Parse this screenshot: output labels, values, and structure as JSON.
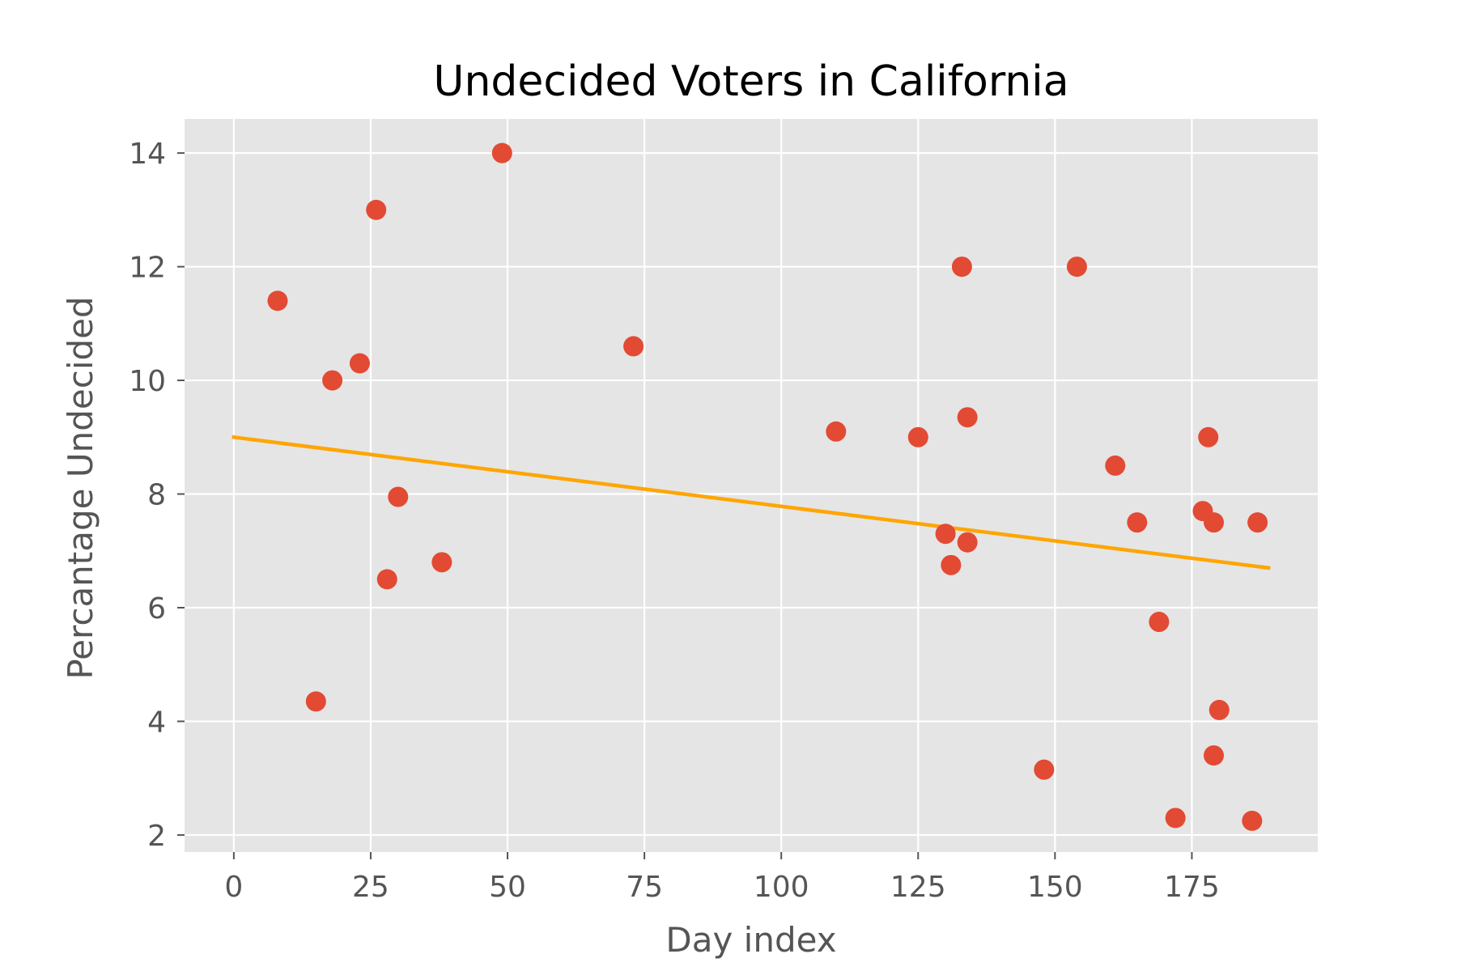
{
  "chart_data": {
    "type": "scatter",
    "title": "Undecided Voters in California",
    "xlabel": "Day index",
    "ylabel": "Percantage Undecided",
    "xlim": [
      -9,
      198
    ],
    "ylim": [
      1.7,
      14.6
    ],
    "xticks": [
      0,
      25,
      50,
      75,
      100,
      125,
      150,
      175
    ],
    "yticks": [
      2,
      4,
      6,
      8,
      10,
      12,
      14
    ],
    "grid": true,
    "background": "#e5e5e5",
    "colors": {
      "points": "#e24a33",
      "trend": "#ffa500",
      "grid": "#ffffff"
    },
    "series": [
      {
        "kind": "points",
        "x": [
          8,
          15,
          18,
          23,
          26,
          28,
          30,
          38,
          49,
          73,
          110,
          125,
          130,
          131,
          133,
          134,
          134,
          148,
          154,
          161,
          165,
          169,
          172,
          177,
          178,
          179,
          179,
          180,
          186,
          187
        ],
        "y": [
          11.4,
          4.35,
          10.0,
          10.3,
          13.0,
          6.5,
          7.95,
          6.8,
          14.0,
          10.6,
          9.1,
          9.0,
          7.3,
          6.75,
          12.0,
          7.15,
          9.35,
          3.15,
          12.0,
          8.5,
          7.5,
          5.75,
          2.3,
          7.7,
          9.0,
          7.5,
          3.4,
          4.2,
          2.25,
          7.5
        ]
      },
      {
        "kind": "trend",
        "x": [
          0,
          189
        ],
        "y": [
          9.0,
          6.7
        ]
      }
    ]
  }
}
